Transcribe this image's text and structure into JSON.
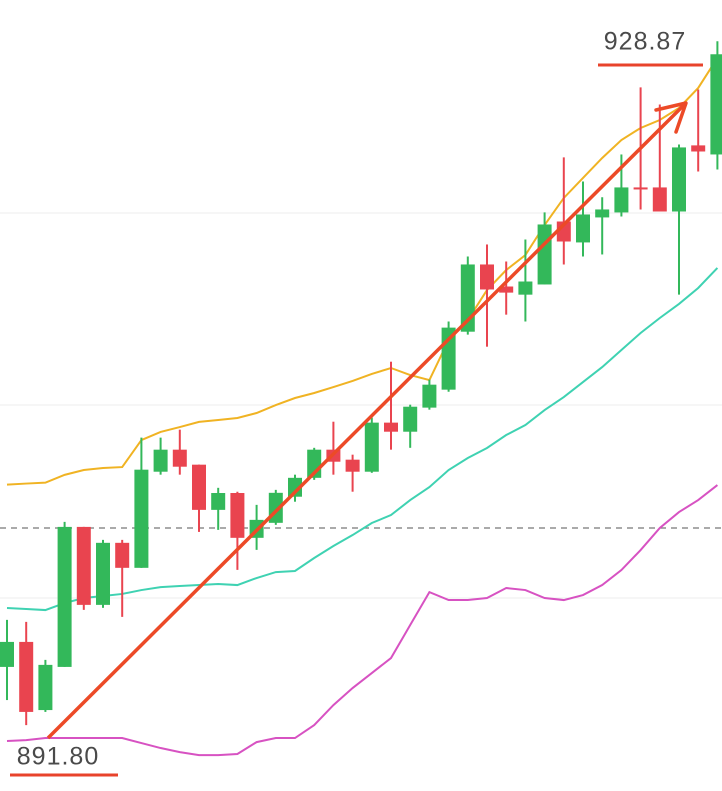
{
  "chart_data": {
    "type": "candlestick",
    "ylim": [
      888.94,
      931.65
    ],
    "grid_lines": [
      920.15,
      909.78,
      899.36
    ],
    "dashed_line": 903.14,
    "up_color": "#33b85a",
    "down_color": "#e9444f",
    "open": [
      895.64,
      896.99,
      893.31,
      895.64,
      903.2,
      898.99,
      902.34,
      900.99,
      906.18,
      907.37,
      906.56,
      904.12,
      905.03,
      902.61,
      903.42,
      904.83,
      905.85,
      907.37,
      906.83,
      906.18,
      908.83,
      908.34,
      909.64,
      910.61,
      913.74,
      917.37,
      916.18,
      915.74,
      916.29,
      919.69,
      918.56,
      919.91,
      920.18,
      921.53,
      921.53,
      920.23,
      923.8,
      923.31
    ],
    "high": [
      898.18,
      898.07,
      896.02,
      903.47,
      903.2,
      902.5,
      902.5,
      908.02,
      908.02,
      908.45,
      906.56,
      905.31,
      905.1,
      904.39,
      905.2,
      906.02,
      907.47,
      908.88,
      907.1,
      909.1,
      912.12,
      909.8,
      911.15,
      914.29,
      917.8,
      918.45,
      917.53,
      918.72,
      920.18,
      923.15,
      921.85,
      921.0,
      923.31,
      926.93,
      926.01,
      923.85,
      926.82,
      929.42
    ],
    "low": [
      893.85,
      892.5,
      893.21,
      895.64,
      898.72,
      898.83,
      898.34,
      900.99,
      906.02,
      906.02,
      902.93,
      903.04,
      900.88,
      901.96,
      903.31,
      904.56,
      905.74,
      906.02,
      905.1,
      906.12,
      907.37,
      907.47,
      909.53,
      910.5,
      913.58,
      912.93,
      914.66,
      914.29,
      916.29,
      917.37,
      917.8,
      917.91,
      919.96,
      920.34,
      920.23,
      915.74,
      922.39,
      922.5
    ],
    "close": [
      896.99,
      893.21,
      895.75,
      903.2,
      898.99,
      902.34,
      900.99,
      906.29,
      907.37,
      906.45,
      904.12,
      905.03,
      902.61,
      903.58,
      905.04,
      905.85,
      907.37,
      906.72,
      906.18,
      908.83,
      908.34,
      909.69,
      910.88,
      913.96,
      917.37,
      916.02,
      915.85,
      916.45,
      919.53,
      918.61,
      920.07,
      920.34,
      921.53,
      921.42,
      920.23,
      923.69,
      923.47,
      928.72
    ],
    "overlays": [
      {
        "color": "#f0b323",
        "values": [
          905.48,
          905.54,
          905.59,
          906.01,
          906.27,
          906.38,
          906.43,
          907.89,
          908.33,
          908.59,
          908.87,
          908.97,
          909.08,
          909.35,
          909.78,
          910.16,
          910.43,
          910.75,
          911.08,
          911.46,
          911.78,
          911.4,
          911.13,
          913.29,
          914.37,
          915.99,
          917.07,
          917.88,
          919.5,
          920.96,
          922.04,
          923.12,
          924.09,
          924.74,
          925.17,
          925.82,
          926.9,
          928.52
        ]
      },
      {
        "color": "#3fd2b2",
        "values": [
          898.82,
          898.77,
          898.71,
          899.09,
          899.36,
          899.47,
          899.58,
          899.79,
          899.95,
          900.01,
          900.06,
          900.12,
          900.06,
          900.44,
          900.76,
          900.82,
          901.52,
          902.17,
          902.76,
          903.41,
          903.84,
          904.65,
          905.35,
          906.27,
          906.92,
          907.46,
          908.16,
          908.7,
          909.51,
          910.21,
          911.02,
          911.83,
          912.75,
          913.67,
          914.48,
          915.24,
          916.1,
          917.18
        ]
      },
      {
        "color": "#d752c2",
        "values": [
          891.64,
          891.69,
          891.8,
          891.8,
          891.8,
          891.8,
          891.8,
          891.53,
          891.26,
          891.04,
          890.88,
          890.88,
          890.94,
          891.58,
          891.8,
          891.8,
          892.5,
          893.58,
          894.5,
          895.31,
          896.12,
          897.9,
          899.68,
          899.25,
          899.25,
          899.36,
          899.9,
          899.79,
          899.36,
          899.25,
          899.52,
          900.06,
          900.87,
          901.95,
          903.14,
          904.0,
          904.65,
          905.46
        ]
      }
    ],
    "annotations": [
      "928.87",
      "891.80"
    ]
  }
}
